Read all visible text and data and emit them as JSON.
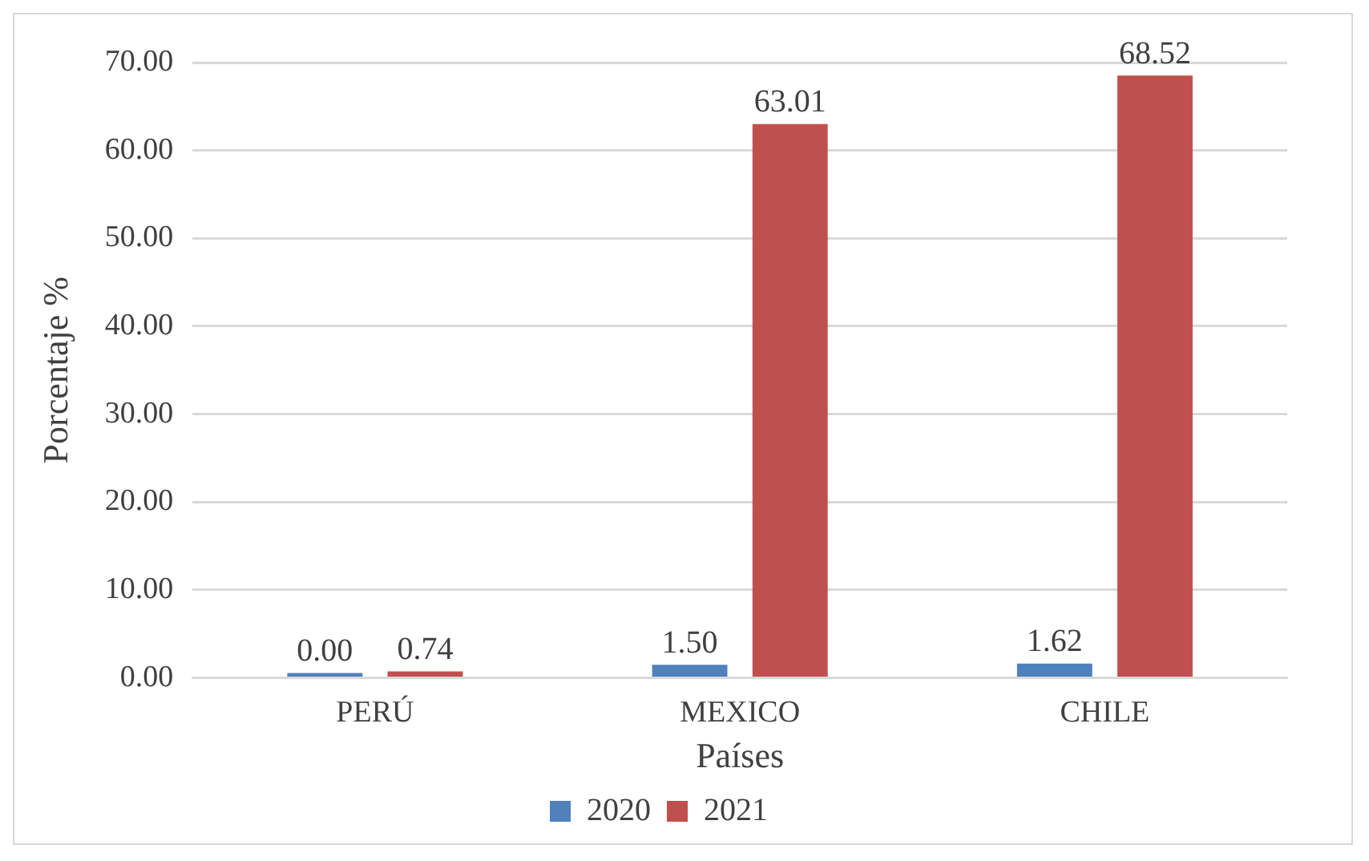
{
  "chart_data": {
    "type": "bar",
    "xlabel": "Países",
    "ylabel": "Porcentaje %",
    "categories": [
      "PERÚ",
      "MEXICO",
      "CHILE"
    ],
    "series": [
      {
        "name": "2020",
        "color": "#4f81bd",
        "values": [
          0,
          1.5,
          1.62
        ],
        "value_labels": [
          "0.00",
          "1.50",
          "1.62"
        ]
      },
      {
        "name": "2021",
        "color": "#c0504d",
        "values": [
          0.74,
          63.01,
          68.52
        ],
        "value_labels": [
          "0.74",
          "63.01",
          "68.52"
        ]
      }
    ],
    "ylim": [
      0,
      70
    ],
    "yticks": [
      {
        "value": 0,
        "label": "0.00"
      },
      {
        "value": 10,
        "label": "10.00"
      },
      {
        "value": 20,
        "label": "20.00"
      },
      {
        "value": 30,
        "label": "30.00"
      },
      {
        "value": 40,
        "label": "40.00"
      },
      {
        "value": 50,
        "label": "50.00"
      },
      {
        "value": 60,
        "label": "60.00"
      },
      {
        "value": 70,
        "label": "70.00"
      }
    ],
    "grid": "y",
    "legend": "bottom"
  }
}
